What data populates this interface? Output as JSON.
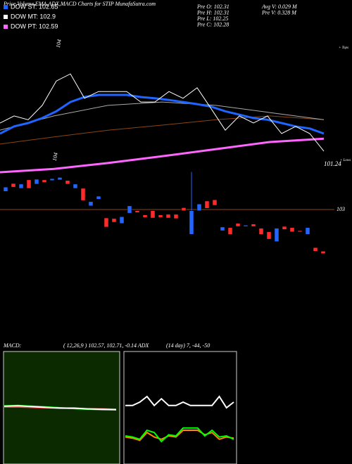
{
  "header": {
    "title": "Price,Volume,EMA,ADX,MACD Charts for STIP MunafaSutra.com"
  },
  "legend": [
    {
      "text": "DOW ST: 102.65",
      "color": "#1e66ff"
    },
    {
      "text": "DOW MT: 102.9",
      "color": "#ffffff"
    },
    {
      "text": "DOW PT: 102.59",
      "color": "#ff66ff"
    }
  ],
  "prev": [
    "Pre O: 102.31",
    "Pre H: 102.31",
    "Pre L: 102.25",
    "Pre C: 102.28",
    "Avg V: 0.029 M",
    "Pre V: 0.328 M"
  ],
  "labels": {
    "top": "104",
    "low": "104",
    "tops": "+ Tops",
    "lows": "+ Lows",
    "last": "101.24"
  },
  "level": 103,
  "lines": [
    {
      "color": "#8b4513",
      "width": 1,
      "values": [
        101.71,
        101.88,
        102.04,
        102.16,
        102.29,
        102.38,
        102.29
      ]
    },
    {
      "color": "#aaaaaa",
      "width": 1,
      "values": [
        102.04,
        102.38,
        102.63,
        102.71,
        102.63,
        102.46,
        102.29
      ]
    },
    {
      "color": "#ff66ff",
      "width": 3,
      "values": [
        101.04,
        101.12,
        101.26,
        101.42,
        101.59,
        101.76,
        101.84
      ]
    },
    {
      "color": "#1e66ff",
      "width": 3,
      "values": [
        101.96,
        102.13,
        102.21,
        102.33,
        102.49,
        102.71,
        102.83,
        102.88,
        102.88,
        102.88,
        102.83,
        102.8,
        102.76,
        102.71,
        102.66,
        102.6,
        102.49,
        102.41,
        102.33,
        102.29,
        102.21,
        102.13,
        102.08,
        101.96
      ]
    },
    {
      "color": "#ffffff",
      "width": 1,
      "values": [
        102.21,
        102.38,
        102.29,
        102.63,
        103.21,
        103.38,
        102.8,
        102.96,
        102.96,
        102.96,
        102.71,
        102.71,
        102.96,
        102.8,
        103.05,
        102.55,
        102.04,
        102.38,
        102.21,
        102.38,
        101.96,
        102.13,
        101.96,
        101.54
      ]
    }
  ],
  "candles": [
    {
      "o": 103.3,
      "c": 103.37
    },
    {
      "o": 103.43,
      "c": 103.37
    },
    {
      "o": 103.35,
      "c": 103.42
    },
    {
      "o": 103.49,
      "c": 103.35
    },
    {
      "o": 103.42,
      "c": 103.5
    },
    {
      "o": 103.49,
      "c": 103.45
    },
    {
      "o": 103.48,
      "c": 103.51
    },
    {
      "o": 103.49,
      "c": 103.53
    },
    {
      "o": 103.48,
      "c": 103.42
    },
    {
      "o": 103.35,
      "c": 103.42
    },
    {
      "o": 103.35,
      "c": 103.15
    },
    {
      "o": 103.06,
      "c": 103.13
    },
    {
      "o": 103.17,
      "c": 103.22
    },
    {
      "o": 102.86,
      "c": 102.71
    },
    {
      "o": 102.85,
      "c": 102.79
    },
    {
      "o": 102.77,
      "c": 102.88
    },
    {
      "o": 102.94,
      "c": 103.06
    },
    {
      "o": 102.98,
      "c": 102.95
    },
    {
      "o": 102.91,
      "c": 102.87
    },
    {
      "o": 102.98,
      "c": 102.86
    },
    {
      "o": 102.91,
      "c": 102.87
    },
    {
      "o": 102.92,
      "c": 102.86
    },
    {
      "o": 102.92,
      "c": 102.85
    },
    {
      "o": 103.03,
      "c": 102.98
    },
    {
      "o": 102.59,
      "c": 102.98,
      "h": 103.62
    },
    {
      "o": 102.98,
      "c": 103.09
    },
    {
      "o": 103.14,
      "c": 103.02
    },
    {
      "o": 103.16,
      "c": 103.07
    },
    {
      "o": 102.65,
      "c": 102.71
    },
    {
      "o": 102.7,
      "c": 102.59
    },
    {
      "o": 102.77,
      "c": 102.72
    },
    {
      "o": 102.72,
      "c": 102.74
    },
    {
      "o": 102.76,
      "c": 102.72
    },
    {
      "o": 102.69,
      "c": 102.59
    },
    {
      "o": 102.63,
      "c": 102.51
    },
    {
      "o": 102.47,
      "c": 102.69
    },
    {
      "o": 102.72,
      "c": 102.67
    },
    {
      "o": 102.7,
      "c": 102.63
    },
    {
      "o": 102.65,
      "c": 102.63
    },
    {
      "o": 102.59,
      "c": 102.7
    },
    {
      "o": 102.37,
      "c": 102.31
    },
    {
      "o": 102.31,
      "c": 102.27
    }
  ],
  "macd": {
    "title": "MACD:",
    "params": "( 12,26,9 ) 102.57, 102.71, -0.14 ADX",
    "ylim": [
      -1.5,
      1.5
    ],
    "series": [
      {
        "color": "#ff3333",
        "values": [
          0.02,
          0.02,
          0.01,
          0.0,
          -0.01,
          -0.02,
          -0.03,
          -0.03,
          -0.04
        ]
      },
      {
        "color": "#00ff00",
        "values": [
          0.05,
          0.06,
          0.04,
          0.02,
          0.0,
          -0.02,
          -0.04,
          -0.05,
          -0.05
        ]
      },
      {
        "color": "#ffffff",
        "values": [
          0.04,
          0.05,
          0.03,
          0.01,
          -0.01,
          -0.01,
          -0.03,
          -0.04,
          -0.05
        ]
      }
    ]
  },
  "adx": {
    "params": "(14 day) 7, -44, -50",
    "ylim": [
      0,
      100
    ],
    "series": [
      {
        "color": "#ffffff",
        "values": [
          52,
          52,
          55,
          60,
          52,
          58,
          52,
          52,
          55,
          52,
          52,
          52,
          52,
          60,
          50,
          55
        ]
      },
      {
        "color": "#ff8800",
        "values": [
          24,
          23,
          21,
          28,
          24,
          22,
          25,
          24,
          30,
          30,
          30,
          26,
          28,
          22,
          24,
          23
        ]
      },
      {
        "color": "#00ff00",
        "values": [
          25,
          24,
          22,
          30,
          28,
          20,
          26,
          25,
          32,
          32,
          32,
          25,
          30,
          24,
          25,
          22
        ]
      }
    ]
  }
}
